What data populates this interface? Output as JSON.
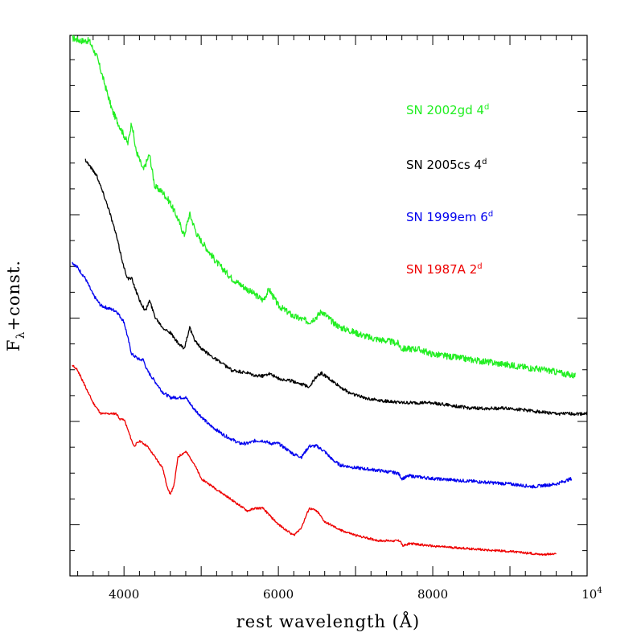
{
  "chart_data": {
    "type": "line",
    "xlabel": "rest wavelength (Å)",
    "ylabel_main": "F",
    "ylabel_sub": "λ",
    "ylabel_rest": "+const.",
    "xlim": [
      3300,
      10000
    ],
    "ylim": [
      0,
      1
    ],
    "x_ticks": [
      {
        "value": 4000,
        "label": "4000"
      },
      {
        "value": 6000,
        "label": "6000"
      },
      {
        "value": 8000,
        "label": "8000"
      },
      {
        "value": 10000,
        "label": "10",
        "exponent": "4"
      }
    ],
    "legend": [
      {
        "base": "SN 2002gd 4",
        "sup": "d",
        "color": "#22ee22"
      },
      {
        "base": "SN 2005cs 4",
        "sup": "d",
        "color": "#000000"
      },
      {
        "base": "SN 1999em 6",
        "sup": "d",
        "color": "#0000ee"
      },
      {
        "base": "SN 1987A 2",
        "sup": "d",
        "color": "#ee0000"
      }
    ],
    "series": [
      {
        "color": "#22ee22",
        "x": [
          3330,
          3450,
          3550,
          3650,
          3750,
          3850,
          3950,
          4050,
          4100,
          4150,
          4250,
          4330,
          4400,
          4500,
          4600,
          4700,
          4780,
          4850,
          4950,
          5050,
          5200,
          5400,
          5600,
          5800,
          5880,
          6000,
          6200,
          6400,
          6500,
          6560,
          6700,
          6800,
          7000,
          7200,
          7400,
          7550,
          7600,
          7800,
          8000,
          8500,
          9000,
          9500,
          9850
        ],
        "y": [
          0.995,
          0.99,
          0.99,
          0.96,
          0.91,
          0.86,
          0.83,
          0.8,
          0.84,
          0.79,
          0.75,
          0.78,
          0.72,
          0.71,
          0.69,
          0.66,
          0.63,
          0.67,
          0.63,
          0.61,
          0.58,
          0.55,
          0.53,
          0.51,
          0.53,
          0.5,
          0.48,
          0.47,
          0.48,
          0.49,
          0.47,
          0.46,
          0.45,
          0.44,
          0.435,
          0.43,
          0.42,
          0.42,
          0.41,
          0.4,
          0.39,
          0.38,
          0.37
        ],
        "noise": 0.006
      },
      {
        "color": "#000000",
        "x": [
          3500,
          3550,
          3600,
          3650,
          3700,
          3800,
          3900,
          4000,
          4050,
          4100,
          4200,
          4280,
          4330,
          4400,
          4500,
          4600,
          4700,
          4780,
          4850,
          4900,
          5000,
          5200,
          5400,
          5600,
          5700,
          5800,
          5880,
          6000,
          6200,
          6400,
          6500,
          6560,
          6700,
          6900,
          7100,
          7300,
          7600,
          7800,
          8000,
          8500,
          9000,
          9300,
          9600,
          10000
        ],
        "y": [
          0.77,
          0.76,
          0.75,
          0.74,
          0.72,
          0.68,
          0.63,
          0.57,
          0.55,
          0.55,
          0.51,
          0.49,
          0.51,
          0.48,
          0.46,
          0.45,
          0.43,
          0.42,
          0.46,
          0.44,
          0.42,
          0.4,
          0.38,
          0.375,
          0.37,
          0.37,
          0.375,
          0.365,
          0.36,
          0.35,
          0.37,
          0.375,
          0.36,
          0.34,
          0.33,
          0.325,
          0.32,
          0.32,
          0.32,
          0.31,
          0.31,
          0.305,
          0.3,
          0.3
        ],
        "noise": 0.003
      },
      {
        "color": "#0000ee",
        "x": [
          3330,
          3400,
          3500,
          3600,
          3700,
          3800,
          3900,
          4000,
          4050,
          4100,
          4200,
          4250,
          4300,
          4400,
          4500,
          4600,
          4700,
          4800,
          4900,
          5100,
          5300,
          5500,
          5600,
          5700,
          5800,
          5900,
          6000,
          6200,
          6300,
          6400,
          6500,
          6600,
          6700,
          6800,
          7000,
          7300,
          7550,
          7600,
          7700,
          8000,
          8500,
          9000,
          9300,
          9600,
          9800
        ],
        "y": [
          0.58,
          0.57,
          0.55,
          0.52,
          0.5,
          0.495,
          0.49,
          0.47,
          0.44,
          0.41,
          0.4,
          0.4,
          0.38,
          0.36,
          0.34,
          0.33,
          0.33,
          0.33,
          0.31,
          0.28,
          0.26,
          0.245,
          0.245,
          0.25,
          0.25,
          0.245,
          0.245,
          0.225,
          0.22,
          0.24,
          0.24,
          0.23,
          0.215,
          0.205,
          0.2,
          0.195,
          0.19,
          0.18,
          0.185,
          0.18,
          0.175,
          0.17,
          0.165,
          0.17,
          0.18
        ],
        "noise": 0.003
      },
      {
        "color": "#ee0000",
        "x": [
          3330,
          3400,
          3500,
          3600,
          3700,
          3800,
          3900,
          3950,
          4000,
          4050,
          4100,
          4130,
          4200,
          4300,
          4400,
          4500,
          4550,
          4600,
          4650,
          4700,
          4800,
          4900,
          5000,
          5200,
          5400,
          5500,
          5600,
          5700,
          5800,
          5900,
          6000,
          6100,
          6200,
          6300,
          6400,
          6500,
          6600,
          6800,
          7000,
          7300,
          7580,
          7610,
          7700,
          8000,
          8500,
          9000,
          9400,
          9600
        ],
        "y": [
          0.39,
          0.38,
          0.35,
          0.32,
          0.3,
          0.3,
          0.3,
          0.29,
          0.29,
          0.27,
          0.25,
          0.24,
          0.25,
          0.24,
          0.22,
          0.2,
          0.17,
          0.15,
          0.17,
          0.22,
          0.23,
          0.21,
          0.18,
          0.16,
          0.14,
          0.13,
          0.12,
          0.125,
          0.125,
          0.11,
          0.095,
          0.085,
          0.075,
          0.09,
          0.125,
          0.12,
          0.1,
          0.085,
          0.075,
          0.065,
          0.065,
          0.055,
          0.06,
          0.055,
          0.05,
          0.045,
          0.04,
          0.04
        ],
        "noise": 0.002
      }
    ]
  }
}
